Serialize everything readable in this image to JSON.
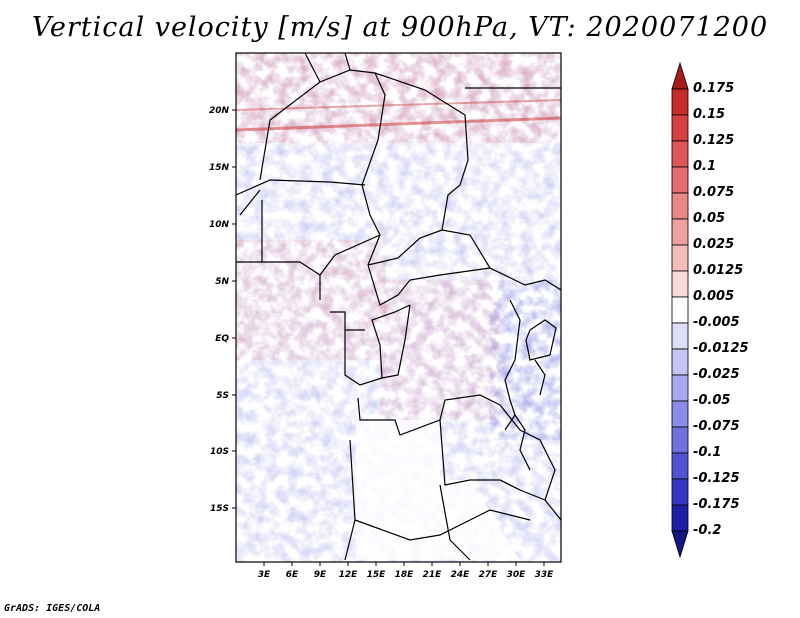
{
  "title": "Vertical velocity [m/s] at 900hPa, VT: 2020071200",
  "footer": "GrADS: IGES/COLA",
  "map": {
    "lat_labels": [
      "20N",
      "15N",
      "10N",
      "5N",
      "EQ",
      "5S",
      "10S",
      "15S"
    ],
    "lon_labels": [
      "3E",
      "6E",
      "9E",
      "12E",
      "15E",
      "18E",
      "21E",
      "24E",
      "27E",
      "30E",
      "33E"
    ]
  },
  "colorbar": {
    "labels": [
      "0.175",
      "0.15",
      "0.125",
      "0.1",
      "0.075",
      "0.05",
      "0.025",
      "0.0125",
      "0.005",
      "-0.005",
      "-0.0125",
      "-0.025",
      "-0.05",
      "-0.075",
      "-0.1",
      "-0.125",
      "-0.175",
      "-0.2"
    ],
    "colors": [
      "#a81c1c",
      "#c92a2a",
      "#d83f3f",
      "#e05555",
      "#e46c6c",
      "#e98686",
      "#f1a0a0",
      "#f6bcbc",
      "#fbdada",
      "#ffffff",
      "#dedef8",
      "#c4c4f4",
      "#a8a8ef",
      "#8c8ce8",
      "#7070e0",
      "#5252d6",
      "#3535c6",
      "#1e1ea6",
      "#141482"
    ]
  }
}
